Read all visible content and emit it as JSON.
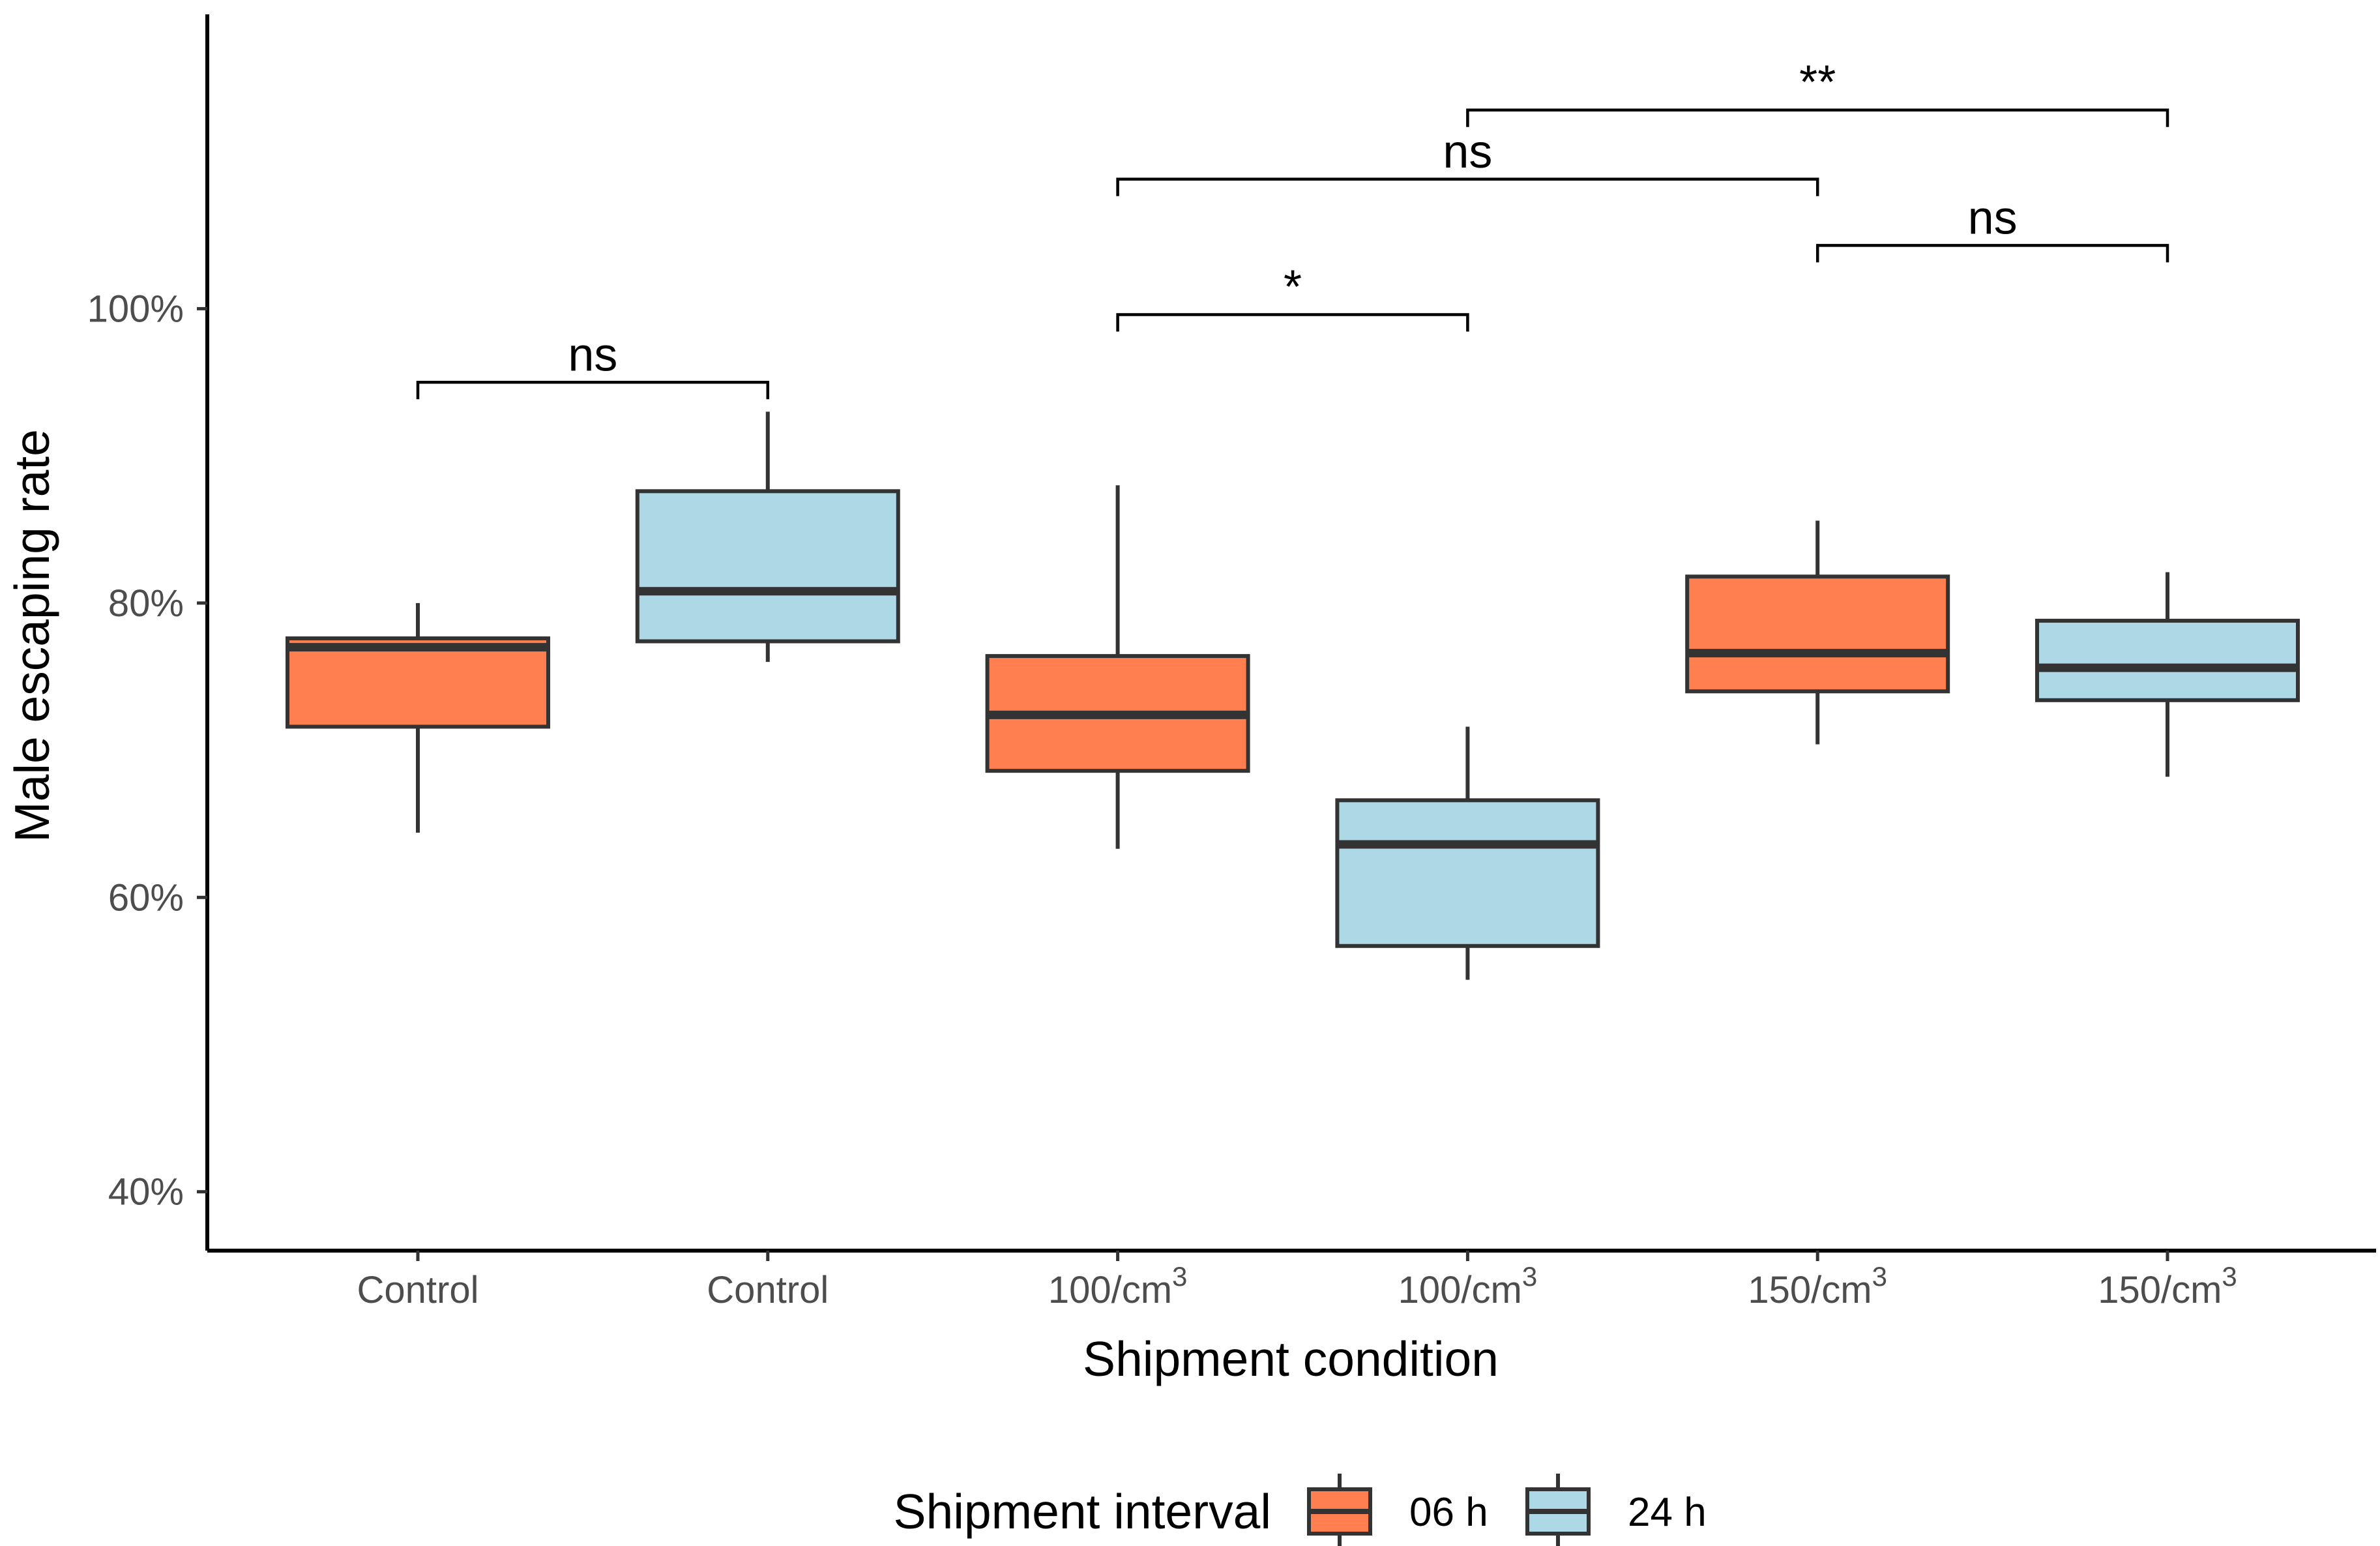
{
  "chart_data": {
    "type": "boxplot",
    "title": "",
    "xlabel": "Shipment condition",
    "ylabel": "Male escaping rate",
    "ylim": [
      36,
      120
    ],
    "yticks": [
      {
        "value": 40,
        "label": "40%"
      },
      {
        "value": 60,
        "label": "60%"
      },
      {
        "value": 80,
        "label": "80%"
      },
      {
        "value": 100,
        "label": "100%"
      }
    ],
    "categories": [
      {
        "base": "Control",
        "sup": ""
      },
      {
        "base": "Control",
        "sup": ""
      },
      {
        "base": "100/cm",
        "sup": "3"
      },
      {
        "base": "100/cm",
        "sup": "3"
      },
      {
        "base": "150/cm",
        "sup": "3"
      },
      {
        "base": "150/cm",
        "sup": "3"
      }
    ],
    "series": [
      {
        "name": "06 h",
        "color": "#FF7F50"
      },
      {
        "name": "24 h",
        "color": "#ADD8E6"
      }
    ],
    "boxes": [
      {
        "category": 0,
        "series": 0,
        "whisker_low": 64.4,
        "q1": 71.6,
        "median": 77.0,
        "q3": 77.6,
        "whisker_high": 80.0
      },
      {
        "category": 1,
        "series": 1,
        "whisker_low": 76.0,
        "q1": 77.4,
        "median": 80.8,
        "q3": 87.6,
        "whisker_high": 93.0
      },
      {
        "category": 2,
        "series": 0,
        "whisker_low": 63.3,
        "q1": 68.6,
        "median": 72.4,
        "q3": 76.4,
        "whisker_high": 88.0
      },
      {
        "category": 3,
        "series": 1,
        "whisker_low": 54.4,
        "q1": 56.7,
        "median": 63.6,
        "q3": 66.6,
        "whisker_high": 71.6
      },
      {
        "category": 4,
        "series": 0,
        "whisker_low": 70.4,
        "q1": 74.0,
        "median": 76.6,
        "q3": 81.8,
        "whisker_high": 85.6
      },
      {
        "category": 5,
        "series": 1,
        "whisker_low": 68.2,
        "q1": 73.4,
        "median": 75.6,
        "q3": 78.8,
        "whisker_high": 82.1
      }
    ],
    "comparisons": [
      {
        "from": 0,
        "to": 1,
        "y": 95.0,
        "label": "ns"
      },
      {
        "from": 2,
        "to": 3,
        "y": 99.6,
        "label": "*"
      },
      {
        "from": 4,
        "to": 5,
        "y": 104.3,
        "label": "ns"
      },
      {
        "from": 2,
        "to": 4,
        "y": 108.8,
        "label": "ns"
      },
      {
        "from": 3,
        "to": 5,
        "y": 113.5,
        "label": "**"
      }
    ],
    "legend": {
      "title": "Shipment interval",
      "position": "bottom"
    }
  }
}
